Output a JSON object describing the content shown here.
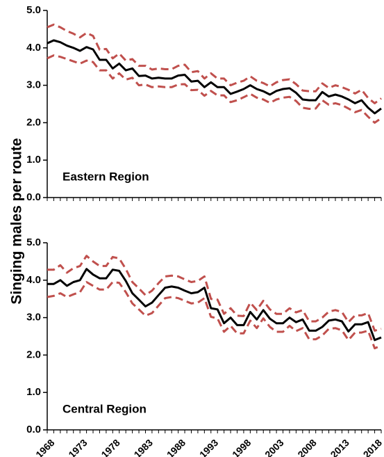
{
  "colors": {
    "main_line": "#000000",
    "ci_line": "#c0504d",
    "axis": "#000000",
    "background": "#ffffff"
  },
  "ylabel": "Singing males per route",
  "x_tick_labels": [
    "1968",
    "1973",
    "1978",
    "1983",
    "1988",
    "1993",
    "1998",
    "2003",
    "2008",
    "2013",
    "2018"
  ],
  "chart_data": [
    {
      "type": "line",
      "panel_label": "Eastern Region",
      "xlim": [
        1968,
        2019
      ],
      "ylim": [
        0,
        5
      ],
      "y_ticks": [
        "0.0",
        "1.0",
        "2.0",
        "3.0",
        "4.0",
        "5.0"
      ],
      "x": [
        1968,
        1969,
        1970,
        1971,
        1972,
        1973,
        1974,
        1975,
        1976,
        1977,
        1978,
        1979,
        1980,
        1981,
        1982,
        1983,
        1984,
        1985,
        1986,
        1987,
        1988,
        1989,
        1990,
        1991,
        1992,
        1993,
        1994,
        1995,
        1996,
        1997,
        1998,
        1999,
        2000,
        2001,
        2002,
        2003,
        2004,
        2005,
        2006,
        2007,
        2008,
        2009,
        2010,
        2011,
        2012,
        2013,
        2014,
        2015,
        2016,
        2017,
        2018,
        2019
      ],
      "series": [
        {
          "role": "index",
          "style": "solid",
          "values": [
            4.12,
            4.2,
            4.15,
            4.06,
            4.0,
            3.92,
            4.02,
            3.96,
            3.68,
            3.68,
            3.45,
            3.58,
            3.4,
            3.45,
            3.25,
            3.26,
            3.18,
            3.2,
            3.18,
            3.18,
            3.26,
            3.28,
            3.1,
            3.12,
            2.95,
            3.08,
            2.95,
            2.95,
            2.77,
            2.83,
            2.9,
            3.0,
            2.9,
            2.84,
            2.75,
            2.85,
            2.9,
            2.92,
            2.8,
            2.62,
            2.6,
            2.6,
            2.82,
            2.7,
            2.75,
            2.7,
            2.62,
            2.52,
            2.6,
            2.4,
            2.25,
            2.38
          ]
        },
        {
          "role": "upper-95-ci",
          "style": "dashed",
          "values": [
            4.55,
            4.62,
            4.55,
            4.45,
            4.38,
            4.28,
            4.4,
            4.32,
            3.95,
            3.97,
            3.72,
            3.85,
            3.66,
            3.7,
            3.52,
            3.52,
            3.42,
            3.45,
            3.43,
            3.43,
            3.52,
            3.55,
            3.35,
            3.38,
            3.18,
            3.32,
            3.18,
            3.18,
            3.0,
            3.07,
            3.12,
            3.24,
            3.12,
            3.06,
            2.97,
            3.08,
            3.14,
            3.16,
            3.03,
            2.86,
            2.84,
            2.84,
            3.05,
            2.93,
            3.0,
            2.95,
            2.88,
            2.78,
            2.88,
            2.66,
            2.52,
            2.65
          ]
        },
        {
          "role": "lower-95-ci",
          "style": "dashed",
          "values": [
            3.72,
            3.8,
            3.76,
            3.7,
            3.64,
            3.58,
            3.66,
            3.62,
            3.4,
            3.4,
            3.18,
            3.32,
            3.15,
            3.2,
            3.0,
            3.02,
            2.95,
            2.97,
            2.95,
            2.95,
            3.02,
            3.03,
            2.87,
            2.88,
            2.72,
            2.85,
            2.73,
            2.73,
            2.55,
            2.6,
            2.68,
            2.77,
            2.67,
            2.62,
            2.53,
            2.62,
            2.67,
            2.69,
            2.58,
            2.4,
            2.37,
            2.38,
            2.6,
            2.48,
            2.52,
            2.47,
            2.38,
            2.28,
            2.34,
            2.16,
            2.0,
            2.12
          ]
        }
      ]
    },
    {
      "type": "line",
      "panel_label": "Central Region",
      "xlim": [
        1968,
        2019
      ],
      "ylim": [
        0,
        5
      ],
      "y_ticks": [
        "0.0",
        "1.0",
        "2.0",
        "3.0",
        "4.0",
        "5.0"
      ],
      "x": [
        1968,
        1969,
        1970,
        1971,
        1972,
        1973,
        1974,
        1975,
        1976,
        1977,
        1978,
        1979,
        1980,
        1981,
        1982,
        1983,
        1984,
        1985,
        1986,
        1987,
        1988,
        1989,
        1990,
        1991,
        1992,
        1993,
        1994,
        1995,
        1996,
        1997,
        1998,
        1999,
        2000,
        2001,
        2002,
        2003,
        2004,
        2005,
        2006,
        2007,
        2008,
        2009,
        2010,
        2011,
        2012,
        2013,
        2014,
        2015,
        2016,
        2017,
        2018,
        2019
      ],
      "series": [
        {
          "role": "index",
          "style": "solid",
          "values": [
            3.9,
            3.9,
            4.0,
            3.85,
            3.95,
            4.0,
            4.3,
            4.15,
            4.05,
            4.05,
            4.28,
            4.25,
            3.98,
            3.65,
            3.48,
            3.3,
            3.4,
            3.6,
            3.8,
            3.83,
            3.8,
            3.72,
            3.65,
            3.68,
            3.8,
            3.25,
            3.22,
            2.85,
            3.0,
            2.8,
            2.8,
            3.15,
            2.95,
            3.2,
            2.97,
            2.85,
            2.85,
            3.0,
            2.88,
            2.95,
            2.65,
            2.65,
            2.75,
            2.92,
            2.95,
            2.9,
            2.63,
            2.82,
            2.82,
            2.88,
            2.4,
            2.47
          ]
        },
        {
          "role": "upper-95-ci",
          "style": "dashed",
          "values": [
            4.28,
            4.28,
            4.4,
            4.2,
            4.32,
            4.38,
            4.65,
            4.5,
            4.38,
            4.38,
            4.62,
            4.58,
            4.3,
            3.95,
            3.78,
            3.6,
            3.72,
            3.92,
            4.1,
            4.12,
            4.1,
            4.02,
            3.95,
            3.98,
            4.1,
            3.5,
            3.48,
            3.1,
            3.25,
            3.05,
            3.04,
            3.4,
            3.2,
            3.45,
            3.22,
            3.1,
            3.1,
            3.25,
            3.14,
            3.2,
            2.9,
            2.9,
            3.0,
            3.16,
            3.2,
            3.15,
            2.88,
            3.06,
            3.06,
            3.12,
            2.65,
            2.7
          ]
        },
        {
          "role": "lower-95-ci",
          "style": "dashed",
          "values": [
            3.55,
            3.58,
            3.65,
            3.55,
            3.62,
            3.68,
            3.95,
            3.85,
            3.75,
            3.75,
            3.95,
            3.93,
            3.68,
            3.38,
            3.22,
            3.05,
            3.12,
            3.32,
            3.52,
            3.55,
            3.52,
            3.45,
            3.38,
            3.4,
            3.52,
            3.02,
            2.98,
            2.62,
            2.78,
            2.58,
            2.58,
            2.92,
            2.72,
            2.98,
            2.75,
            2.62,
            2.62,
            2.78,
            2.64,
            2.72,
            2.42,
            2.42,
            2.52,
            2.7,
            2.72,
            2.66,
            2.4,
            2.6,
            2.6,
            2.65,
            2.18,
            2.25
          ]
        }
      ]
    }
  ]
}
